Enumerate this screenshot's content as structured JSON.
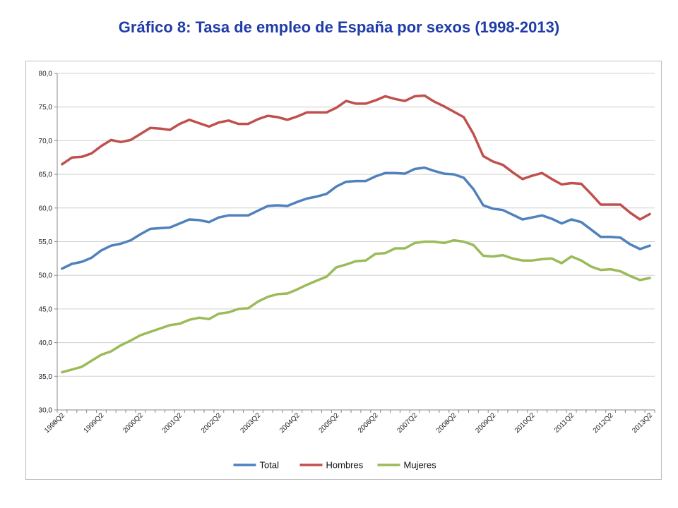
{
  "title": "Gráfico 8: Tasa de empleo de España por sexos (1998-2013)",
  "chart_data": {
    "type": "line",
    "title": "Gráfico 8: Tasa de empleo de España por sexos (1998-2013)",
    "xlabel": "",
    "ylabel": "",
    "ylim": [
      30,
      80
    ],
    "yticks": [
      "30,0",
      "35,0",
      "40,0",
      "45,0",
      "50,0",
      "55,0",
      "60,0",
      "65,0",
      "70,0",
      "75,0",
      "80,0"
    ],
    "grid": "horizontal",
    "legend": "bottom",
    "x": [
      "1998Q2",
      "1998Q3",
      "1998Q4",
      "1999Q1",
      "1999Q2",
      "1999Q3",
      "1999Q4",
      "2000Q1",
      "2000Q2",
      "2000Q3",
      "2000Q4",
      "2001Q1",
      "2001Q2",
      "2001Q3",
      "2001Q4",
      "2002Q1",
      "2002Q2",
      "2002Q3",
      "2002Q4",
      "2003Q1",
      "2003Q2",
      "2003Q3",
      "2003Q4",
      "2004Q1",
      "2004Q2",
      "2004Q3",
      "2004Q4",
      "2005Q1",
      "2005Q2",
      "2005Q3",
      "2005Q4",
      "2006Q1",
      "2006Q2",
      "2006Q3",
      "2006Q4",
      "2007Q1",
      "2007Q2",
      "2007Q3",
      "2007Q4",
      "2008Q1",
      "2008Q2",
      "2008Q3",
      "2008Q4",
      "2009Q1",
      "2009Q2",
      "2009Q3",
      "2009Q4",
      "2010Q1",
      "2010Q2",
      "2010Q3",
      "2010Q4",
      "2011Q1",
      "2011Q2",
      "2011Q3",
      "2011Q4",
      "2012Q1",
      "2012Q2",
      "2012Q3",
      "2012Q4",
      "2013Q1",
      "2013Q2"
    ],
    "xtick_labels": [
      "1998Q2",
      "1999Q2",
      "2000Q2",
      "2001Q2",
      "2002Q2",
      "2003Q2",
      "2004Q2",
      "2005Q2",
      "2006Q2",
      "2007Q2",
      "2008Q2",
      "2009Q2",
      "2010Q2",
      "2011Q2",
      "2012Q2",
      "2013Q2"
    ],
    "series": [
      {
        "name": "Total",
        "color": "#4f81bd",
        "values": [
          51.0,
          51.7,
          52.0,
          52.6,
          53.7,
          54.4,
          54.7,
          55.2,
          56.1,
          56.9,
          57.0,
          57.1,
          57.7,
          58.3,
          58.2,
          57.9,
          58.6,
          58.9,
          58.9,
          58.9,
          59.6,
          60.3,
          60.4,
          60.3,
          60.9,
          61.4,
          61.7,
          62.1,
          63.2,
          63.9,
          64.0,
          64.0,
          64.7,
          65.2,
          65.2,
          65.1,
          65.8,
          66.0,
          65.5,
          65.1,
          65.0,
          64.5,
          62.8,
          60.4,
          59.9,
          59.7,
          59.0,
          58.3,
          58.6,
          58.9,
          58.4,
          57.7,
          58.3,
          57.9,
          56.8,
          55.7,
          55.7,
          55.6,
          54.6,
          53.9,
          54.4
        ]
      },
      {
        "name": "Hombres",
        "color": "#c0504d",
        "values": [
          66.5,
          67.5,
          67.6,
          68.1,
          69.2,
          70.1,
          69.8,
          70.1,
          71.0,
          71.9,
          71.8,
          71.6,
          72.5,
          73.1,
          72.6,
          72.1,
          72.7,
          73.0,
          72.5,
          72.5,
          73.2,
          73.7,
          73.5,
          73.1,
          73.6,
          74.2,
          74.2,
          74.2,
          74.9,
          75.9,
          75.5,
          75.5,
          76.0,
          76.6,
          76.2,
          75.9,
          76.6,
          76.7,
          75.8,
          75.1,
          74.3,
          73.5,
          71.0,
          67.7,
          66.9,
          66.4,
          65.3,
          64.3,
          64.8,
          65.2,
          64.3,
          63.5,
          63.7,
          63.6,
          62.1,
          60.5,
          60.5,
          60.5,
          59.3,
          58.3,
          59.1
        ]
      },
      {
        "name": "Mujeres",
        "color": "#9bbb59",
        "values": [
          35.6,
          36.0,
          36.4,
          37.3,
          38.2,
          38.7,
          39.6,
          40.3,
          41.1,
          41.6,
          42.1,
          42.6,
          42.8,
          43.4,
          43.7,
          43.5,
          44.3,
          44.5,
          45.0,
          45.1,
          46.1,
          46.8,
          47.2,
          47.3,
          47.9,
          48.6,
          49.2,
          49.8,
          51.2,
          51.6,
          52.1,
          52.2,
          53.2,
          53.3,
          54.0,
          54.0,
          54.8,
          55.0,
          55.0,
          54.8,
          55.2,
          55.0,
          54.5,
          52.9,
          52.8,
          53.0,
          52.5,
          52.2,
          52.2,
          52.4,
          52.5,
          51.8,
          52.8,
          52.2,
          51.3,
          50.8,
          50.9,
          50.6,
          49.9,
          49.3,
          49.6
        ]
      }
    ]
  }
}
